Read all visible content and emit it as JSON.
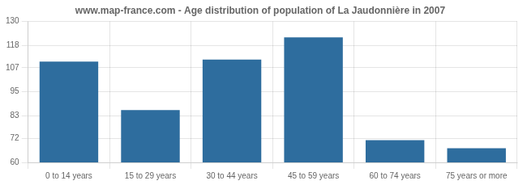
{
  "chart_data": {
    "type": "bar",
    "title": "www.map-france.com - Age distribution of population of La Jaudonnière in 2007",
    "categories": [
      "0 to 14 years",
      "15 to 29 years",
      "30 to 44 years",
      "45 to 59 years",
      "60 to 74 years",
      "75 years or more"
    ],
    "values": [
      110,
      86,
      111,
      122,
      71,
      67
    ],
    "color": "#2e6d9e",
    "ylim": [
      60,
      130
    ],
    "yticks": [
      60,
      72,
      83,
      95,
      107,
      118,
      130
    ],
    "grid": true
  }
}
